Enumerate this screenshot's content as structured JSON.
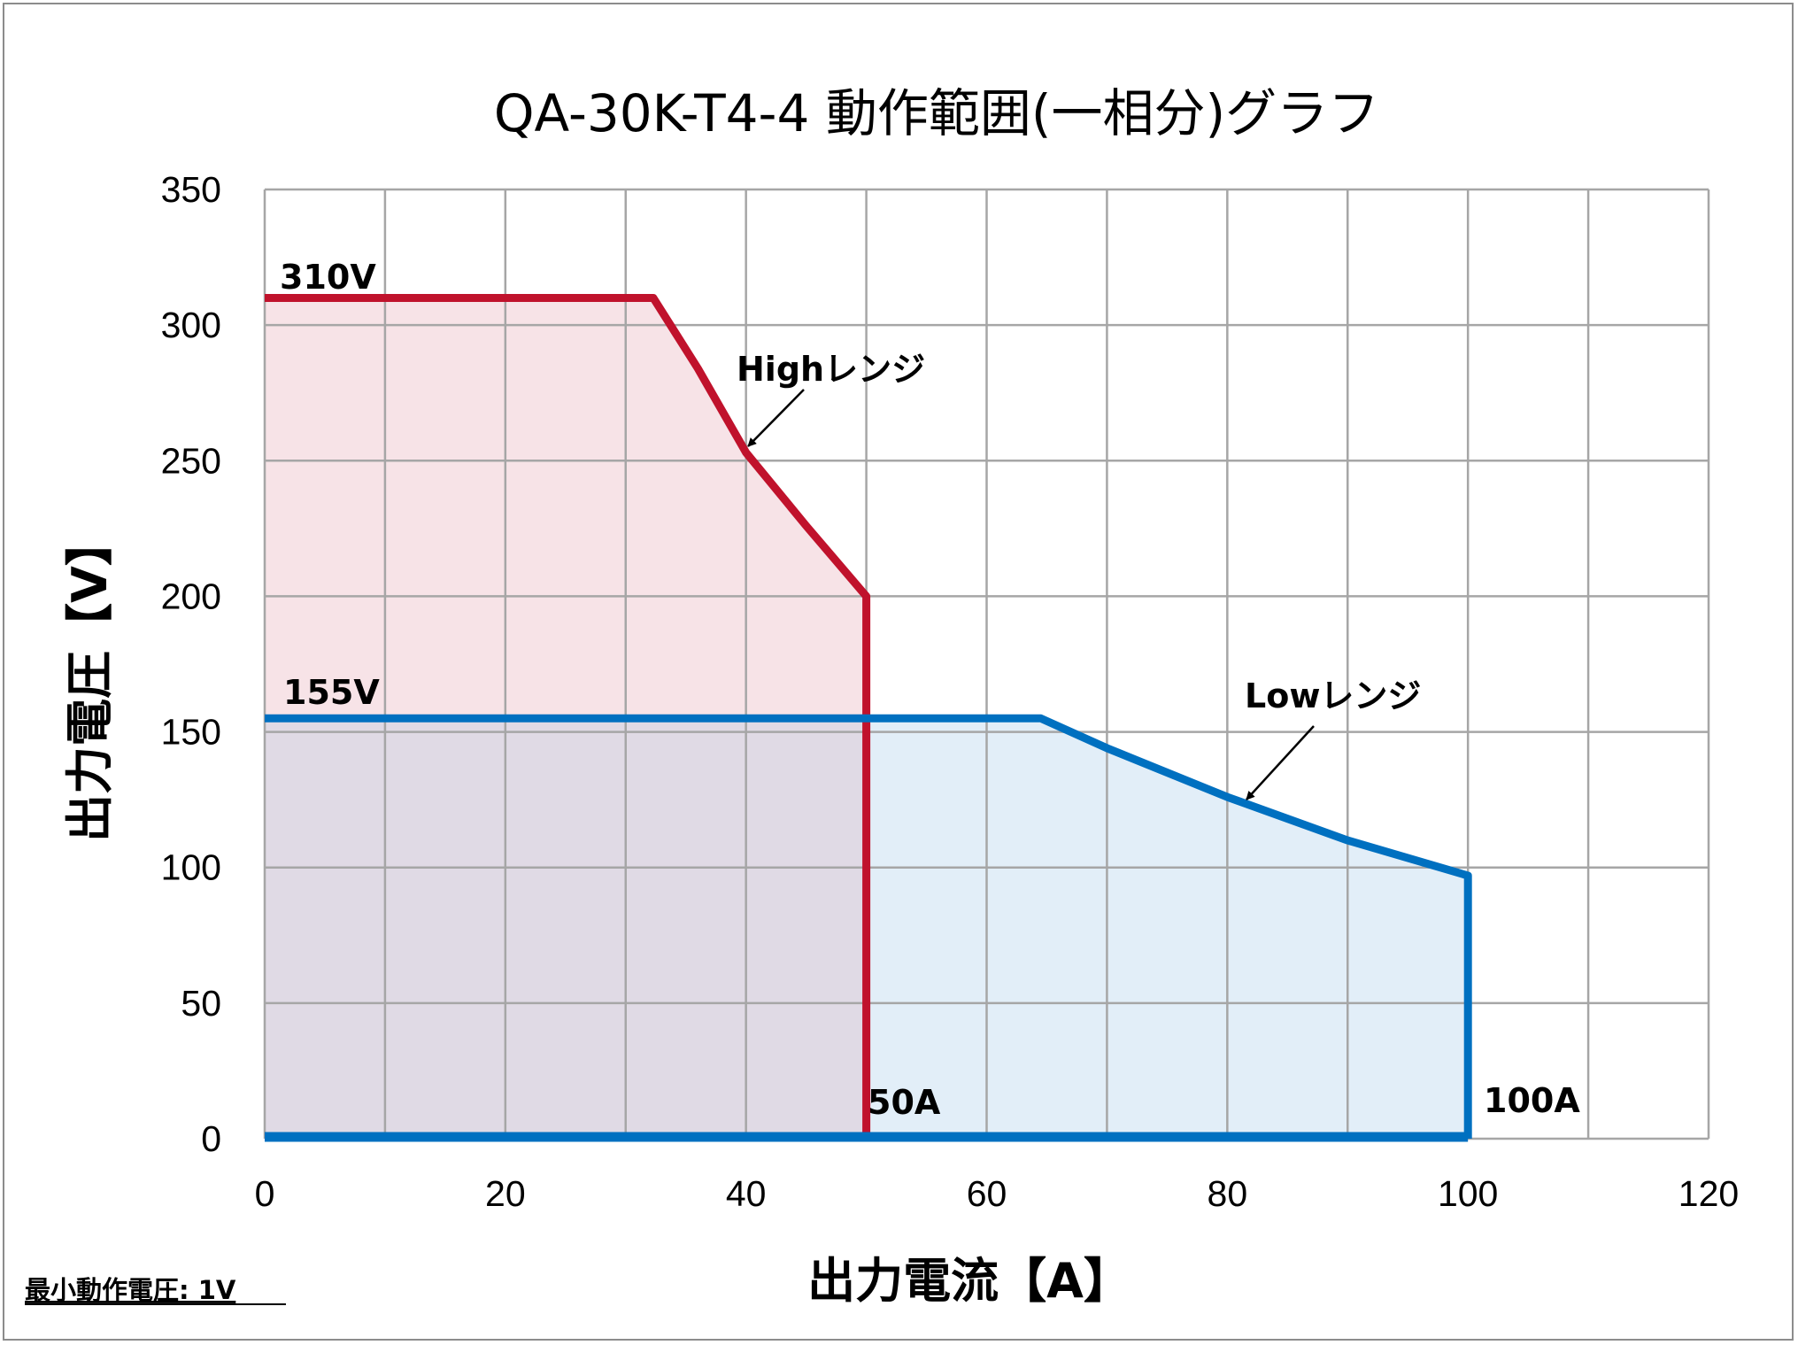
{
  "chart_data": {
    "type": "area",
    "title": "QA-30K-T4-4 動作範囲(一相分)グラフ",
    "xlabel": "出力電流【A】",
    "ylabel": "出力電圧【V】",
    "xlim": [
      0,
      120
    ],
    "ylim": [
      0,
      350
    ],
    "x_ticks": [
      "0",
      "20",
      "40",
      "60",
      "80",
      "100",
      "120"
    ],
    "y_ticks": [
      "0",
      "50",
      "100",
      "150",
      "200",
      "250",
      "300",
      "350"
    ],
    "grid": true,
    "series": [
      {
        "name": "Highレンジ",
        "color": "#c0122c",
        "fill": "#f7e3e7",
        "points": [
          [
            0,
            310
          ],
          [
            32.3,
            310
          ],
          [
            36,
            284
          ],
          [
            40,
            253
          ],
          [
            45,
            226
          ],
          [
            50,
            200
          ],
          [
            50,
            0
          ],
          [
            0,
            0
          ]
        ]
      },
      {
        "name": "Lowレンジ",
        "color": "#0070c0",
        "fill": "#e2eef8",
        "points": [
          [
            0,
            155
          ],
          [
            64.5,
            155
          ],
          [
            70,
            144
          ],
          [
            80,
            126
          ],
          [
            90,
            110
          ],
          [
            100,
            97
          ],
          [
            100,
            0
          ],
          [
            0,
            0
          ]
        ]
      }
    ],
    "overlap_fill": "#e0dae5",
    "annotations": [
      {
        "text": "310V",
        "x": 1,
        "y": 310
      },
      {
        "text": "155V",
        "x": 1,
        "y": 155
      },
      {
        "text": "50A",
        "x": 50,
        "y": 0
      },
      {
        "text": "100A",
        "x": 100,
        "y": 0
      },
      {
        "text": "Highレンジ",
        "x": 40,
        "y": 255
      },
      {
        "text": "Lowレンジ",
        "x": 81,
        "y": 125
      }
    ],
    "footnote": "最小動作電圧: 1V"
  }
}
